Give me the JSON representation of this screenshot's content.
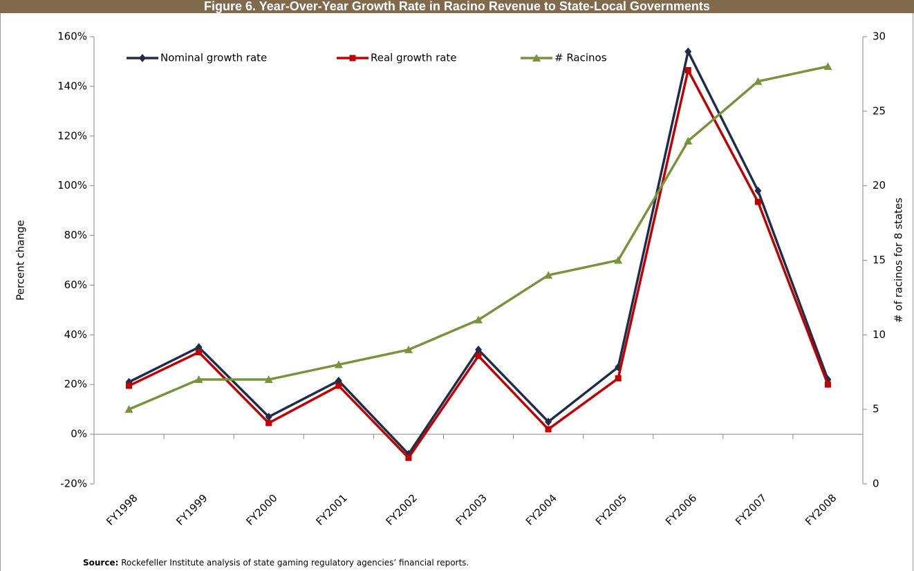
{
  "chart_data": {
    "type": "line",
    "title": "Figure 6. Year-Over-Year Growth Rate in Racino Revenue to State-Local Governments",
    "categories": [
      "FY1998",
      "FY1999",
      "FY2000",
      "FY2001",
      "FY2002",
      "FY2003",
      "FY2004",
      "FY2005",
      "FY2006",
      "FY2007",
      "FY2008"
    ],
    "series": [
      {
        "name": "Nominal growth rate",
        "color": "#1f2d4a",
        "marker": "diamond",
        "values": [
          21,
          35,
          7,
          21.5,
          -8,
          34,
          5,
          27,
          154,
          98,
          22
        ]
      },
      {
        "name": "Real growth rate",
        "color": "#c00000",
        "marker": "square",
        "values": [
          19.5,
          33,
          4.5,
          19.5,
          -9.5,
          31.5,
          2,
          22.5,
          146.5,
          93.5,
          20
        ]
      },
      {
        "name": "# Racinos",
        "color": "#77933c",
        "marker": "triangle",
        "axis": "y2",
        "values": [
          5,
          7,
          7,
          8,
          9,
          11,
          14,
          15,
          23,
          27,
          28
        ]
      }
    ],
    "ylabel": "Percent change",
    "y2label": "# of racinos for 8 states",
    "ylim": [
      -20,
      160
    ],
    "yticks": [
      {
        "value": -20,
        "label": "-20%"
      },
      {
        "value": 0,
        "label": "0%"
      },
      {
        "value": 20,
        "label": "20%"
      },
      {
        "value": 40,
        "label": "40%"
      },
      {
        "value": 60,
        "label": "60%"
      },
      {
        "value": 80,
        "label": "80%"
      },
      {
        "value": 100,
        "label": "100%"
      },
      {
        "value": 120,
        "label": "120%"
      },
      {
        "value": 140,
        "label": "140%"
      },
      {
        "value": 160,
        "label": "160%"
      }
    ],
    "y2lim": [
      0,
      30
    ],
    "y2ticks": [
      0,
      5,
      10,
      15,
      20,
      25,
      30
    ],
    "grid": false,
    "legend": "top",
    "source_label": "Source:",
    "source_text": "Rockefeller Institute analysis of state gaming regulatory agencies’ financial reports."
  }
}
